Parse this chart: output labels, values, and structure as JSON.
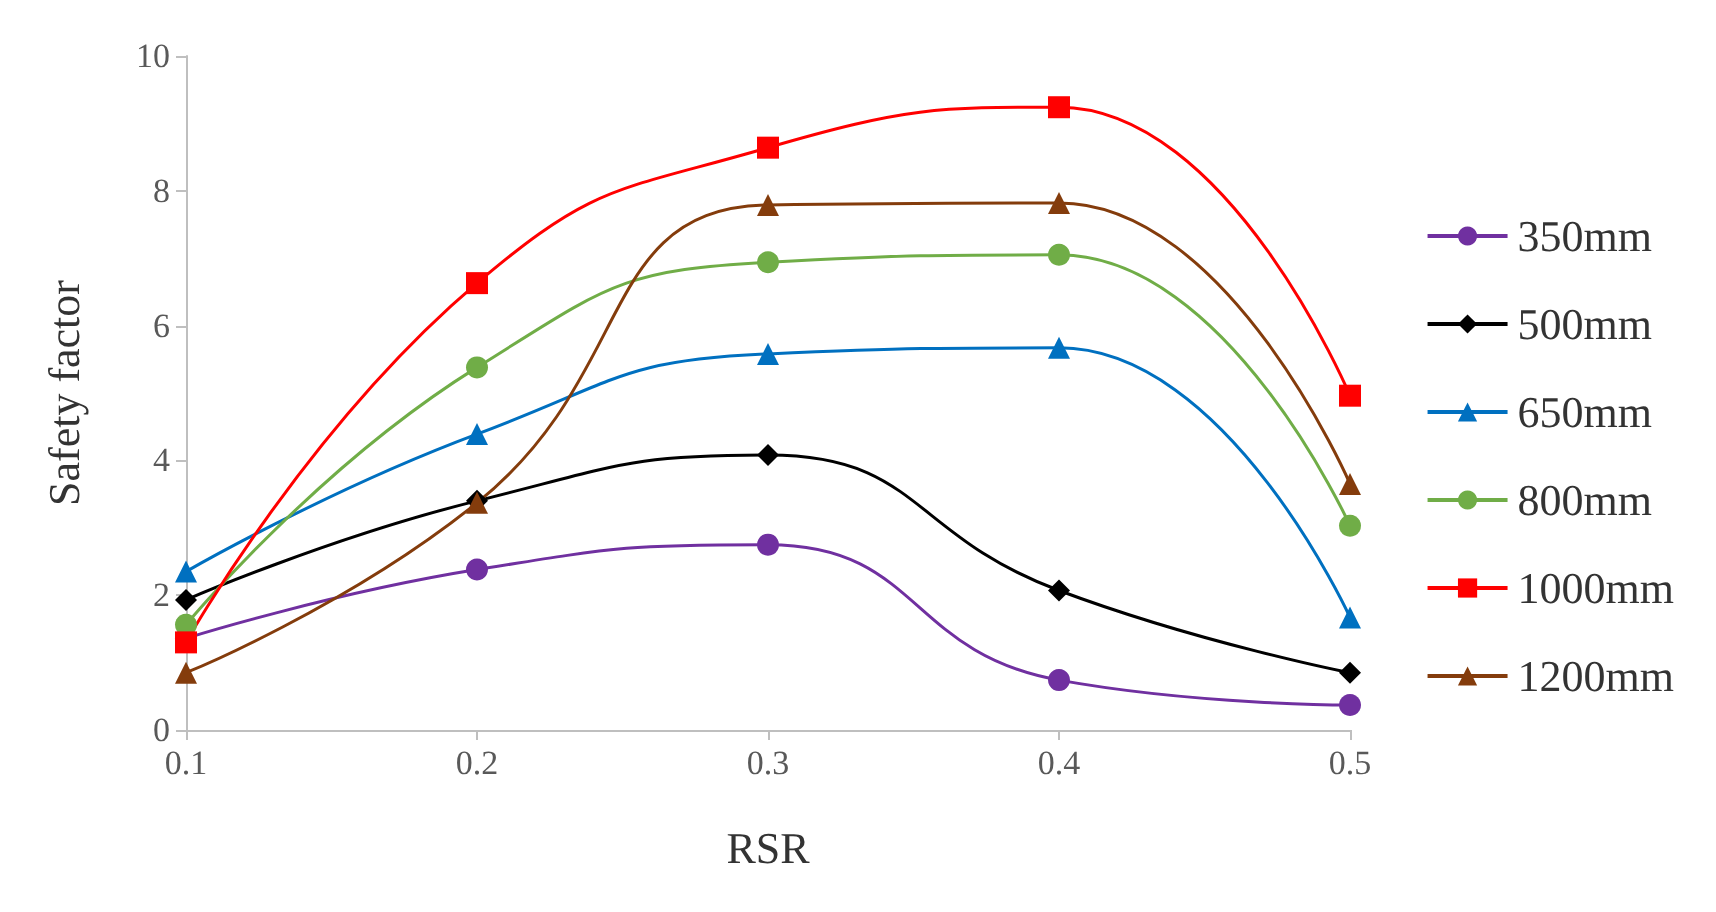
{
  "chart_data": {
    "type": "line",
    "xlabel": "RSR",
    "ylabel": "Safety factor",
    "x": [
      0.1,
      0.2,
      0.3,
      0.4,
      0.5
    ],
    "xlim": [
      0.1,
      0.5
    ],
    "xticks": [
      0.1,
      0.2,
      0.3,
      0.4,
      0.5
    ],
    "ylim": [
      0,
      10
    ],
    "yticks": [
      0,
      2,
      4,
      6,
      8,
      10
    ],
    "grid": false,
    "legend": "right",
    "line_style": "solid",
    "series": [
      {
        "name": "350mm",
        "color": "#7030a0",
        "marker": "circle",
        "values": [
          1.36,
          2.38,
          2.75,
          0.74,
          0.37
        ]
      },
      {
        "name": "500mm",
        "color": "#000000",
        "marker": "diamond",
        "values": [
          1.93,
          3.4,
          4.08,
          2.07,
          0.85
        ]
      },
      {
        "name": "650mm",
        "color": "#0070c0",
        "marker": "triangle",
        "values": [
          2.35,
          4.39,
          5.58,
          5.67,
          1.67
        ]
      },
      {
        "name": "800mm",
        "color": "#70ad47",
        "marker": "circle",
        "values": [
          1.56,
          5.38,
          6.94,
          7.05,
          3.03
        ]
      },
      {
        "name": "1000mm",
        "color": "#ff0000",
        "marker": "square",
        "values": [
          1.3,
          6.63,
          8.64,
          9.24,
          4.96
        ]
      },
      {
        "name": "1200mm",
        "color": "#843c0c",
        "marker": "triangle",
        "values": [
          0.85,
          3.37,
          7.79,
          7.82,
          3.65
        ]
      }
    ]
  }
}
